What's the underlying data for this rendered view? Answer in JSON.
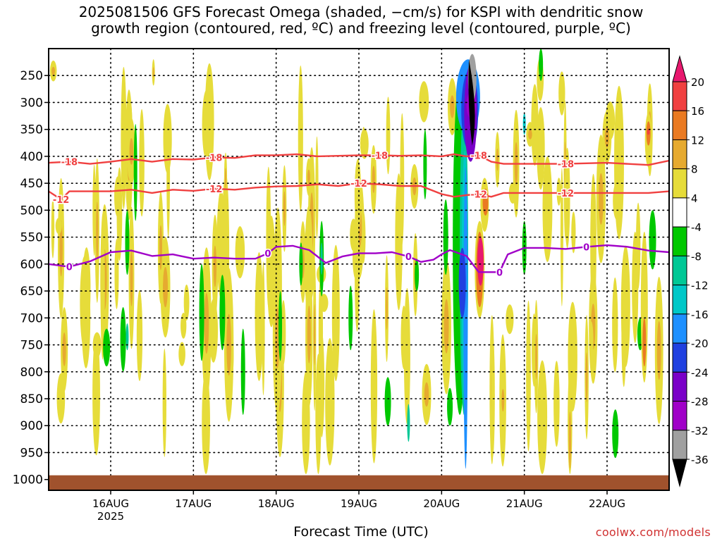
{
  "chart_data": {
    "type": "heatmap",
    "title_lines": [
      "2025081506 GFS Forecast Omega (shaded, −cm/s) for KSPI with dendritic snow",
      "growth region (contoured, red, ºC) and freezing level (contoured, purple, ºC)"
    ],
    "xlabel": "Forecast Time (UTC)",
    "credit": "coolwx.com/models",
    "x_axis": {
      "range_days": [
        15.25,
        22.75
      ],
      "ticks": [
        {
          "day": 16,
          "label": "16AUG",
          "sublabel": "2025"
        },
        {
          "day": 17,
          "label": "17AUG"
        },
        {
          "day": 18,
          "label": "18AUG"
        },
        {
          "day": 19,
          "label": "19AUG"
        },
        {
          "day": 20,
          "label": "20AUG"
        },
        {
          "day": 21,
          "label": "21AUG"
        },
        {
          "day": 22,
          "label": "22AUG"
        }
      ]
    },
    "y_axis": {
      "units": "hPa",
      "range": [
        1020,
        200
      ],
      "ticks": [
        250,
        300,
        350,
        400,
        450,
        500,
        550,
        600,
        650,
        700,
        750,
        800,
        850,
        900,
        950,
        1000
      ],
      "grid": "dotted"
    },
    "colorbar": {
      "labels": [
        "20",
        "16",
        "12",
        "8",
        "4",
        "-4",
        "-8",
        "-12",
        "-16",
        "-20",
        "-24",
        "-28",
        "-32",
        "-36"
      ],
      "bins": [
        {
          "color": "#e8186e"
        },
        {
          "color": "#f04040"
        },
        {
          "color": "#ea7a22"
        },
        {
          "color": "#e6aa30"
        },
        {
          "color": "#e6dc3a"
        },
        {
          "color": "#ffffff"
        },
        {
          "color": "#00c800"
        },
        {
          "color": "#00c896"
        },
        {
          "color": "#00c8c8"
        },
        {
          "color": "#1e90ff"
        },
        {
          "color": "#2040e0"
        },
        {
          "color": "#7a00c8"
        },
        {
          "color": "#a000c8"
        },
        {
          "color": "#a0a0a0"
        },
        {
          "color": "#000000"
        }
      ]
    },
    "contours": [
      {
        "label": "-18",
        "color": "#f04040",
        "points": [
          [
            15.25,
            412
          ],
          [
            15.5,
            410
          ],
          [
            15.75,
            414
          ],
          [
            16,
            410
          ],
          [
            16.25,
            405
          ],
          [
            16.5,
            410
          ],
          [
            16.75,
            405
          ],
          [
            17,
            406
          ],
          [
            17.25,
            402
          ],
          [
            17.5,
            403
          ],
          [
            17.75,
            398
          ],
          [
            18,
            398
          ],
          [
            18.25,
            396
          ],
          [
            18.5,
            400
          ],
          [
            18.75,
            399
          ],
          [
            19,
            398
          ],
          [
            19.25,
            398
          ],
          [
            19.5,
            399
          ],
          [
            19.75,
            398
          ],
          [
            20,
            400
          ],
          [
            20.15,
            396
          ],
          [
            20.3,
            400
          ],
          [
            20.45,
            398
          ],
          [
            20.6,
            410
          ],
          [
            20.75,
            414
          ],
          [
            21,
            414
          ],
          [
            21.5,
            414
          ],
          [
            22,
            412
          ],
          [
            22.5,
            416
          ],
          [
            22.75,
            408
          ]
        ]
      },
      {
        "label": "-12",
        "color": "#f04040",
        "points": [
          [
            15.25,
            465
          ],
          [
            15.4,
            480
          ],
          [
            15.5,
            465
          ],
          [
            15.75,
            465
          ],
          [
            16,
            465
          ],
          [
            16.25,
            462
          ],
          [
            16.5,
            468
          ],
          [
            16.75,
            462
          ],
          [
            17,
            464
          ],
          [
            17.25,
            460
          ],
          [
            17.5,
            462
          ],
          [
            17.75,
            458
          ],
          [
            18,
            456
          ],
          [
            18.25,
            455
          ],
          [
            18.5,
            452
          ],
          [
            18.75,
            455
          ],
          [
            19,
            450
          ],
          [
            19.25,
            452
          ],
          [
            19.5,
            455
          ],
          [
            19.75,
            455
          ],
          [
            20,
            470
          ],
          [
            20.15,
            475
          ],
          [
            20.3,
            472
          ],
          [
            20.45,
            470
          ],
          [
            20.6,
            475
          ],
          [
            20.75,
            468
          ],
          [
            21,
            468
          ],
          [
            21.5,
            468
          ],
          [
            22,
            468
          ],
          [
            22.5,
            468
          ],
          [
            22.75,
            465
          ]
        ]
      },
      {
        "label": "0",
        "color": "#a000c8",
        "points": [
          [
            15.25,
            600
          ],
          [
            15.5,
            605
          ],
          [
            15.75,
            595
          ],
          [
            16,
            578
          ],
          [
            16.25,
            575
          ],
          [
            16.5,
            585
          ],
          [
            16.75,
            582
          ],
          [
            17,
            590
          ],
          [
            17.25,
            588
          ],
          [
            17.5,
            590
          ],
          [
            17.75,
            590
          ],
          [
            17.9,
            580
          ],
          [
            18,
            568
          ],
          [
            18.2,
            566
          ],
          [
            18.4,
            574
          ],
          [
            18.6,
            598
          ],
          [
            18.8,
            586
          ],
          [
            19,
            580
          ],
          [
            19.2,
            580
          ],
          [
            19.4,
            578
          ],
          [
            19.6,
            586
          ],
          [
            19.75,
            596
          ],
          [
            19.9,
            592
          ],
          [
            20,
            582
          ],
          [
            20.1,
            574
          ],
          [
            20.3,
            585
          ],
          [
            20.45,
            615
          ],
          [
            20.6,
            615
          ],
          [
            20.7,
            615
          ],
          [
            20.8,
            582
          ],
          [
            21,
            570
          ],
          [
            21.25,
            570
          ],
          [
            21.5,
            572
          ],
          [
            21.75,
            568
          ],
          [
            22,
            565
          ],
          [
            22.25,
            568
          ],
          [
            22.5,
            575
          ],
          [
            22.75,
            578
          ]
        ]
      }
    ]
  }
}
